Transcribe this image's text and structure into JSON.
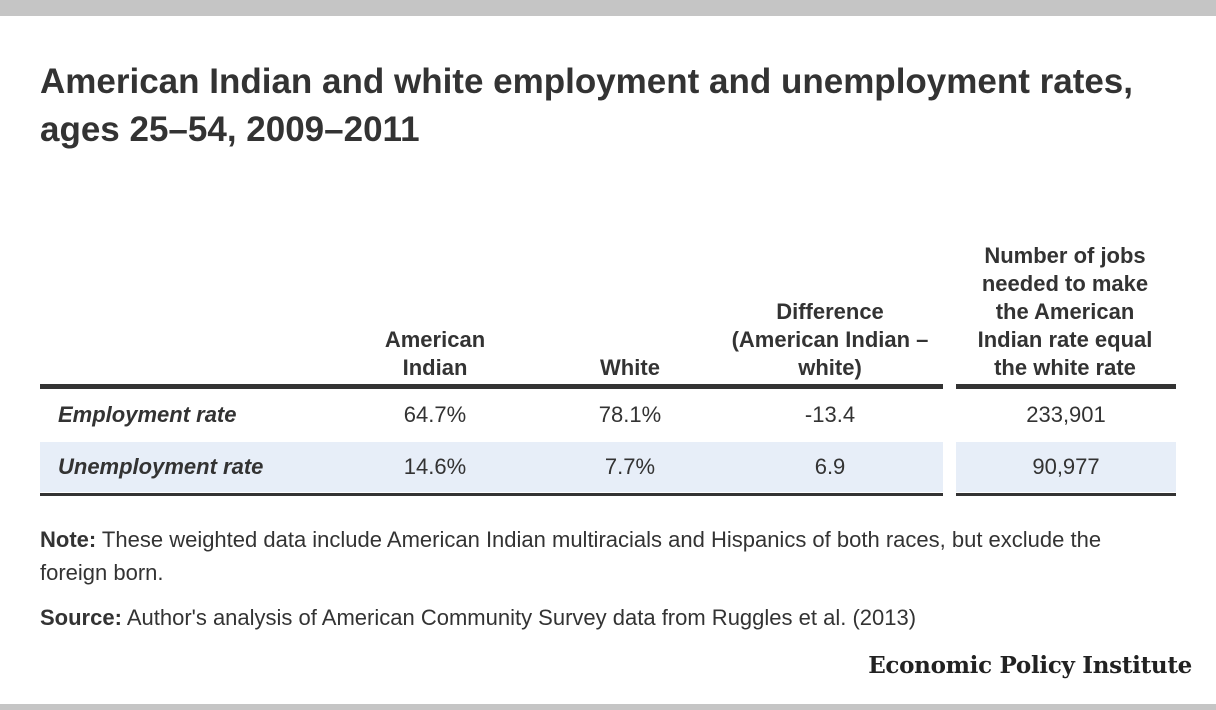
{
  "title": "American Indian and white employment and unemployment rates, ages 25–54, 2009–2011",
  "table": {
    "headers": [
      "",
      "American Indian",
      "White",
      "Difference (American Indian – white)",
      "Number of jobs needed to make the American Indian rate equal the white rate"
    ],
    "rows": [
      {
        "label": "Employment rate",
        "american_indian": "64.7%",
        "white": "78.1%",
        "difference": "-13.4",
        "jobs_needed": "233,901"
      },
      {
        "label": "Unemployment rate",
        "american_indian": "14.6%",
        "white": "7.7%",
        "difference": "6.9",
        "jobs_needed": "90,977"
      }
    ]
  },
  "chart_data": {
    "type": "table",
    "title": "American Indian and white employment and unemployment rates, ages 25–54, 2009–2011",
    "columns": [
      "",
      "American Indian",
      "White",
      "Difference (American Indian – white)",
      "Number of jobs needed to make the American Indian rate equal the white rate"
    ],
    "rows": [
      [
        "Employment rate",
        "64.7%",
        "78.1%",
        "-13.4",
        "233,901"
      ],
      [
        "Unemployment rate",
        "14.6%",
        "7.7%",
        "6.9",
        "90,977"
      ]
    ]
  },
  "note": {
    "label": "Note:",
    "text": " These weighted data include American Indian multiracials and Hispanics of both races, but exclude the foreign born."
  },
  "source": {
    "label": "Source:",
    "text": " Author's analysis of American Community Survey data from Ruggles et al. (2013)"
  },
  "brand": "Economic Policy Institute",
  "colors": {
    "accent_rule": "#333333",
    "row_highlight": "#e7eef8",
    "frame_bar": "#c5c5c5"
  }
}
